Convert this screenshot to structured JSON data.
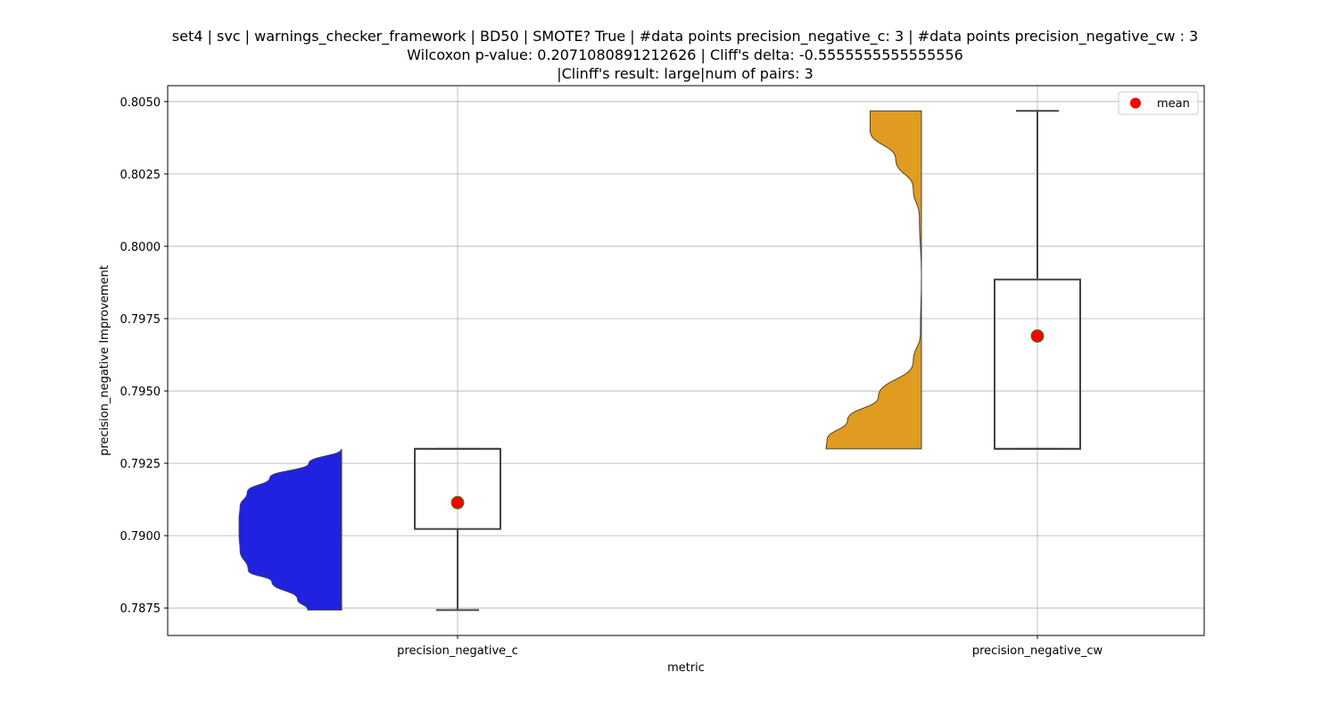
{
  "chart_data": {
    "type": "violin-box",
    "title_lines": [
      "set4 | svc | warnings_checker_framework | BD50 | SMOTE? True | #data points precision_negative_c: 3 | #data points precision_negative_cw : 3",
      "Wilcoxon p-value: 0.2071080891212626 | Cliff's delta: -0.5555555555555556",
      "|Clinff's result: large|num of pairs: 3"
    ],
    "xlabel": "metric",
    "ylabel": "precision_negative Improvement",
    "ylim": [
      0.78655,
      0.80555
    ],
    "yticks": [
      "0.7875",
      "0.7900",
      "0.7925",
      "0.7950",
      "0.7975",
      "0.8000",
      "0.8025",
      "0.8050"
    ],
    "ytick_values": [
      0.7875,
      0.79,
      0.7925,
      0.795,
      0.7975,
      0.8,
      0.8025,
      0.805
    ],
    "grid": true,
    "legend": {
      "position": "top-right",
      "label": "mean",
      "marker_color": "#ff0000"
    },
    "categories": [
      "precision_negative_c",
      "precision_negative_cw"
    ],
    "series": [
      {
        "category": "precision_negative_c",
        "violin_color": "#2121e0",
        "violin_side": "left",
        "violin_min": 0.78743,
        "violin_max": 0.793,
        "violin_profile": [
          [
            0.78743,
            0.33
          ],
          [
            0.7878,
            0.43
          ],
          [
            0.7884,
            0.68
          ],
          [
            0.7888,
            0.91
          ],
          [
            0.7895,
            0.99
          ],
          [
            0.79,
            1.0
          ],
          [
            0.7906,
            1.0
          ],
          [
            0.791,
            0.99
          ],
          [
            0.7915,
            0.92
          ],
          [
            0.792,
            0.7
          ],
          [
            0.7925,
            0.32
          ],
          [
            0.793,
            0.0
          ]
        ],
        "box": {
          "q1": 0.79023,
          "median": 0.793,
          "q3": 0.793,
          "whisker_low": 0.78743,
          "whisker_high": 0.793
        },
        "mean": 0.79114
      },
      {
        "category": "precision_negative_cw",
        "violin_color": "#e09c21",
        "violin_side": "left",
        "violin_min": 0.793,
        "violin_max": 0.80468,
        "violin_profile": [
          [
            0.793,
            0.93
          ],
          [
            0.7933,
            0.92
          ],
          [
            0.794,
            0.72
          ],
          [
            0.7948,
            0.42
          ],
          [
            0.796,
            0.08
          ],
          [
            0.797,
            0.01
          ],
          [
            0.799,
            0.0
          ],
          [
            0.801,
            0.02
          ],
          [
            0.802,
            0.08
          ],
          [
            0.803,
            0.25
          ],
          [
            0.804,
            0.5
          ],
          [
            0.80468,
            0.5
          ]
        ],
        "box": {
          "q1": 0.793,
          "median": 0.793,
          "q3": 0.79885,
          "whisker_low": 0.793,
          "whisker_high": 0.80468
        },
        "mean": 0.7969
      }
    ]
  }
}
